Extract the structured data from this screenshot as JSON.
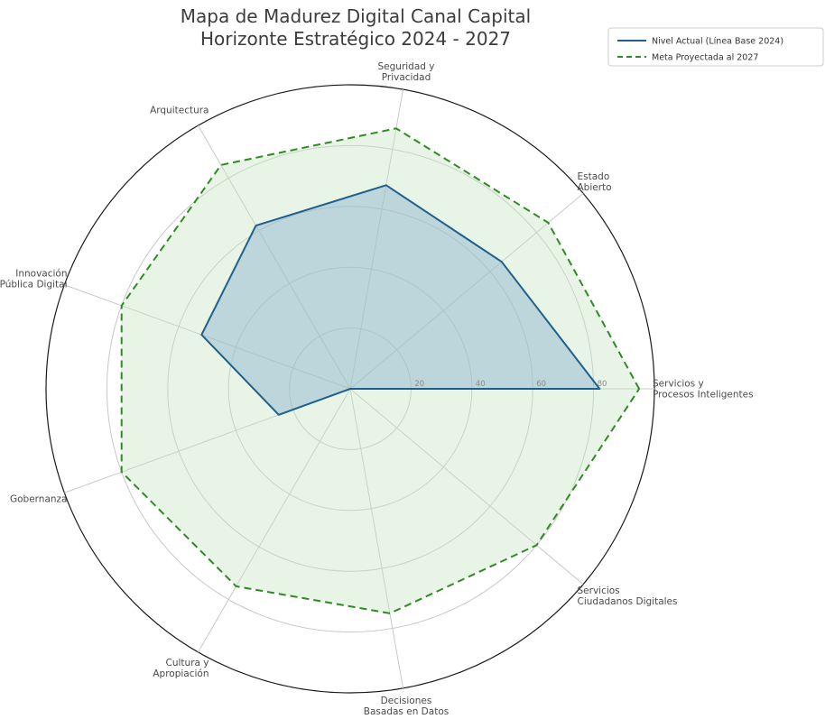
{
  "chart_data": {
    "type": "radar",
    "title": [
      "Mapa de Madurez Digital Canal Capital",
      "Horizonte Estratégico 2024 - 2027"
    ],
    "axes": [
      [
        "Servicios y",
        "Procesos Inteligentes"
      ],
      [
        "Estado",
        "Abierto"
      ],
      [
        "Seguridad y",
        "Privacidad"
      ],
      [
        "Arquitectura"
      ],
      [
        "Innovación",
        "Pública Digital"
      ],
      [
        "Gobernanza"
      ],
      [
        "Cultura y",
        "Apropiación"
      ],
      [
        "Decisiones",
        "Basadas en Datos"
      ],
      [
        "Servicios",
        "Ciudadanos Digitales"
      ]
    ],
    "rlim": [
      0,
      100
    ],
    "rticks": [
      20,
      40,
      60,
      80
    ],
    "rtick_labels": [
      "20",
      "40",
      "60",
      "80"
    ],
    "grid": true,
    "legend_position": "top-right",
    "series": [
      {
        "name": "Nivel Actual (Línea Base 2024)",
        "values": [
          82,
          65,
          68,
          62,
          52,
          25,
          0,
          0,
          0
        ],
        "color": "#1f5f8b",
        "fill": "#8fb8cf",
        "fill_opacity": 0.5,
        "line_style": "solid"
      },
      {
        "name": "Meta Proyectada al 2027",
        "values": [
          95,
          85,
          87,
          85,
          80,
          80,
          75,
          75,
          80
        ],
        "color": "#2e8b22",
        "fill": "#c6e6c0",
        "fill_opacity": 0.4,
        "line_style": "dashed"
      }
    ]
  }
}
